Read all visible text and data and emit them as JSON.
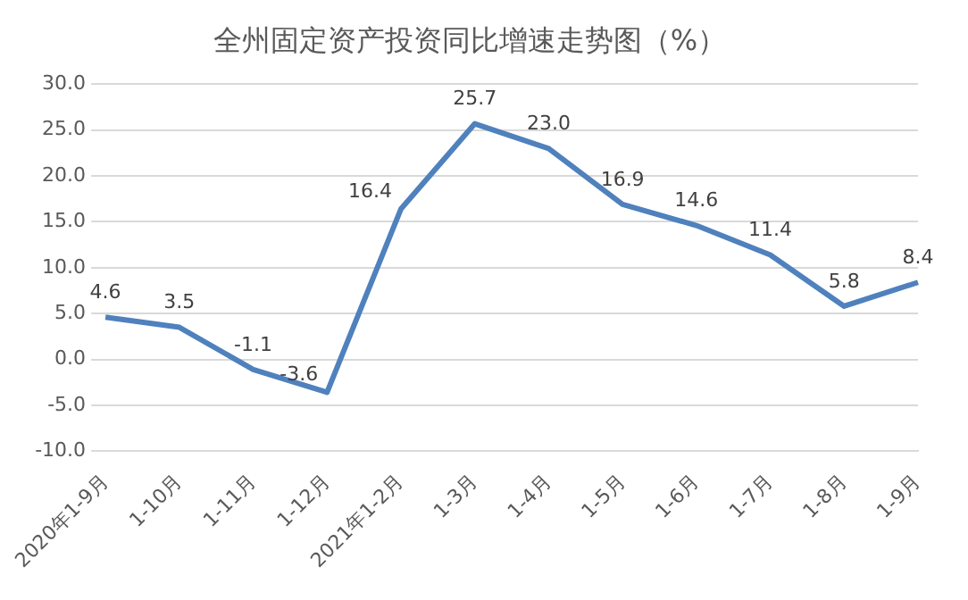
{
  "chart_data": {
    "type": "line",
    "title": "全州固定资产投资同比增速走势图（%）",
    "categories": [
      "2020年1-9月",
      "1-10月",
      "1-11月",
      "1-12月",
      "2021年1-2月",
      "1-3月",
      "1-4月",
      "1-5月",
      "1-6月",
      "1-7月",
      "1-8月",
      "1-9月"
    ],
    "series": [
      {
        "color": "#4f81bd",
        "values": [
          4.6,
          3.5,
          -1.1,
          -3.6,
          16.4,
          25.7,
          23.0,
          16.9,
          14.6,
          11.4,
          5.8,
          8.4
        ],
        "value_labels": [
          "4.6",
          "3.5",
          "-1.1",
          "-3.6",
          "16.4",
          "25.7",
          "23.0",
          "16.9",
          "14.6",
          "11.4",
          "5.8",
          "8.4"
        ]
      }
    ],
    "ylim": [
      -10,
      30
    ],
    "yticks": [
      {
        "value": -10,
        "label": "-10.0"
      },
      {
        "value": -5,
        "label": "-5.0"
      },
      {
        "value": 0,
        "label": "0.0"
      },
      {
        "value": 5,
        "label": "5.0"
      },
      {
        "value": 10,
        "label": "10.0"
      },
      {
        "value": 15,
        "label": "15.0"
      },
      {
        "value": 20,
        "label": "20.0"
      },
      {
        "value": 25,
        "label": "25.0"
      },
      {
        "value": 30,
        "label": "30.0"
      }
    ],
    "grid": "y",
    "legend": false,
    "marker": "none",
    "line_style": "solid"
  }
}
